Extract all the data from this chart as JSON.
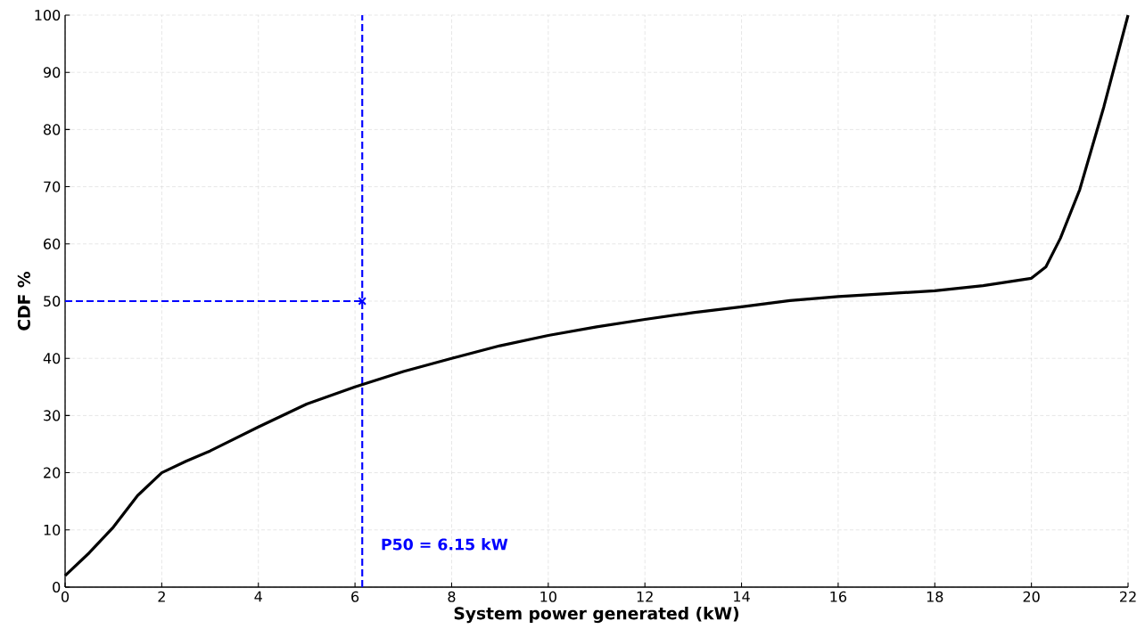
{
  "chart_data": {
    "type": "line",
    "xlabel": "System power generated (kW)",
    "ylabel": "CDF %",
    "xlim": [
      0,
      22
    ],
    "ylim": [
      0,
      100
    ],
    "xticks": [
      0,
      2,
      4,
      6,
      8,
      10,
      12,
      14,
      16,
      18,
      20,
      22
    ],
    "yticks": [
      0,
      10,
      20,
      30,
      40,
      50,
      60,
      70,
      80,
      90,
      100
    ],
    "grid": true,
    "marker": "none",
    "series": [
      {
        "color": "#000000",
        "line_style": "solid",
        "x": [
          0,
          0.5,
          1,
          1.5,
          2,
          2.5,
          3,
          4,
          5,
          6,
          7,
          8,
          9,
          10,
          11,
          12,
          13,
          14,
          15,
          16,
          17,
          18,
          19,
          20,
          20.3,
          20.6,
          21,
          21.5,
          22
        ],
        "values": [
          2,
          6,
          10.5,
          16,
          20,
          22,
          23.8,
          28,
          32,
          35,
          37.7,
          40,
          42.2,
          44,
          45.5,
          46.8,
          48,
          49,
          50.1,
          50.8,
          51.3,
          51.8,
          52.7,
          54,
          56,
          61,
          69.5,
          84,
          100
        ]
      },
      {
        "color": "#0000ff",
        "line_style": "dashed",
        "x": [
          0,
          6.15
        ],
        "values": [
          50,
          50
        ]
      },
      {
        "type": "scatter",
        "color": "#0000ff",
        "marker": "cross",
        "x": [
          6.15
        ],
        "values": [
          50
        ]
      }
    ],
    "ref_lines": [
      {
        "axis": "x",
        "value": 6.15,
        "color": "#0000ff",
        "line_style": "dashed"
      }
    ],
    "annotations": [
      {
        "text": "P50 = 6.15 kW",
        "x": 6.15,
        "y": 7.5
      }
    ]
  }
}
